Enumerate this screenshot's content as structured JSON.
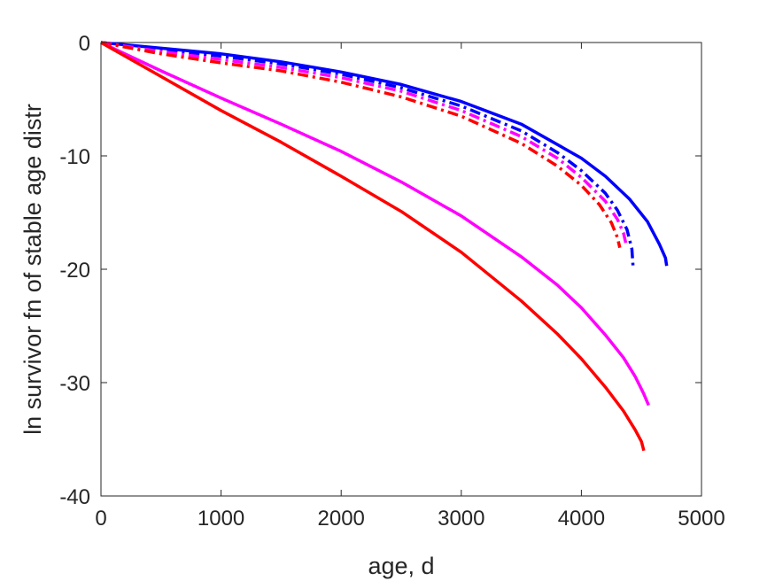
{
  "chart_data": {
    "type": "line",
    "xlabel": "age, d",
    "ylabel": "ln survivor fn of stable age distr",
    "xlim": [
      0,
      5000
    ],
    "ylim": [
      -40,
      0
    ],
    "xticks": [
      0,
      1000,
      2000,
      3000,
      4000,
      5000
    ],
    "yticks": [
      0,
      -10,
      -20,
      -30,
      -40
    ],
    "xtick_labels": [
      "0",
      "1000",
      "2000",
      "3000",
      "4000",
      "5000"
    ],
    "ytick_labels": [
      "0",
      "-10",
      "-20",
      "-30",
      "-40"
    ],
    "grid": false,
    "legend": "none",
    "series": [
      {
        "color": "#0000ff",
        "style": "solid",
        "x": [
          0,
          500,
          1000,
          1500,
          2000,
          2500,
          3000,
          3500,
          4000,
          4200,
          4400,
          4550,
          4650,
          4700,
          4710
        ],
        "y": [
          0,
          -0.5,
          -1.0,
          -1.7,
          -2.6,
          -3.7,
          -5.2,
          -7.2,
          -10.2,
          -11.8,
          -13.8,
          -15.8,
          -17.8,
          -19.0,
          -19.7
        ]
      },
      {
        "color": "#0000ff",
        "style": "dashdot",
        "x": [
          0,
          500,
          1000,
          1500,
          2000,
          2500,
          3000,
          3500,
          3800,
          4000,
          4200,
          4300,
          4380,
          4420,
          4430
        ],
        "y": [
          0,
          -0.6,
          -1.2,
          -1.9,
          -2.8,
          -4.0,
          -5.6,
          -7.8,
          -9.7,
          -11.3,
          -13.3,
          -14.8,
          -16.5,
          -18.2,
          -19.7
        ]
      },
      {
        "color": "#ff00ff",
        "style": "dashdot",
        "x": [
          0,
          500,
          1000,
          1500,
          2000,
          2500,
          3000,
          3500,
          3800,
          4000,
          4200,
          4300,
          4350,
          4370
        ],
        "y": [
          0,
          -0.8,
          -1.5,
          -2.2,
          -3.1,
          -4.3,
          -6.0,
          -8.3,
          -10.2,
          -11.9,
          -14.0,
          -15.6,
          -16.8,
          -17.7
        ]
      },
      {
        "color": "#ff0000",
        "style": "dashdot",
        "x": [
          0,
          500,
          1000,
          1500,
          2000,
          2500,
          3000,
          3500,
          3800,
          4000,
          4150,
          4250,
          4300,
          4320
        ],
        "y": [
          0,
          -1.0,
          -1.8,
          -2.5,
          -3.5,
          -4.8,
          -6.5,
          -8.9,
          -10.9,
          -12.6,
          -14.3,
          -15.9,
          -17.2,
          -18.1
        ]
      },
      {
        "color": "#ff00ff",
        "style": "solid",
        "x": [
          0,
          500,
          1000,
          1500,
          2000,
          2500,
          3000,
          3500,
          3800,
          4000,
          4200,
          4350,
          4450,
          4520,
          4560
        ],
        "y": [
          0,
          -2.5,
          -4.9,
          -7.2,
          -9.6,
          -12.3,
          -15.3,
          -18.9,
          -21.4,
          -23.4,
          -25.8,
          -27.8,
          -29.5,
          -31.0,
          -32.0
        ]
      },
      {
        "color": "#ff0000",
        "style": "solid",
        "x": [
          0,
          500,
          1000,
          1500,
          2000,
          2500,
          3000,
          3500,
          3800,
          4000,
          4200,
          4350,
          4450,
          4500,
          4520
        ],
        "y": [
          0,
          -3.0,
          -6.0,
          -8.8,
          -11.8,
          -14.9,
          -18.5,
          -22.8,
          -25.7,
          -27.9,
          -30.4,
          -32.5,
          -34.2,
          -35.2,
          -36.0
        ]
      }
    ]
  }
}
